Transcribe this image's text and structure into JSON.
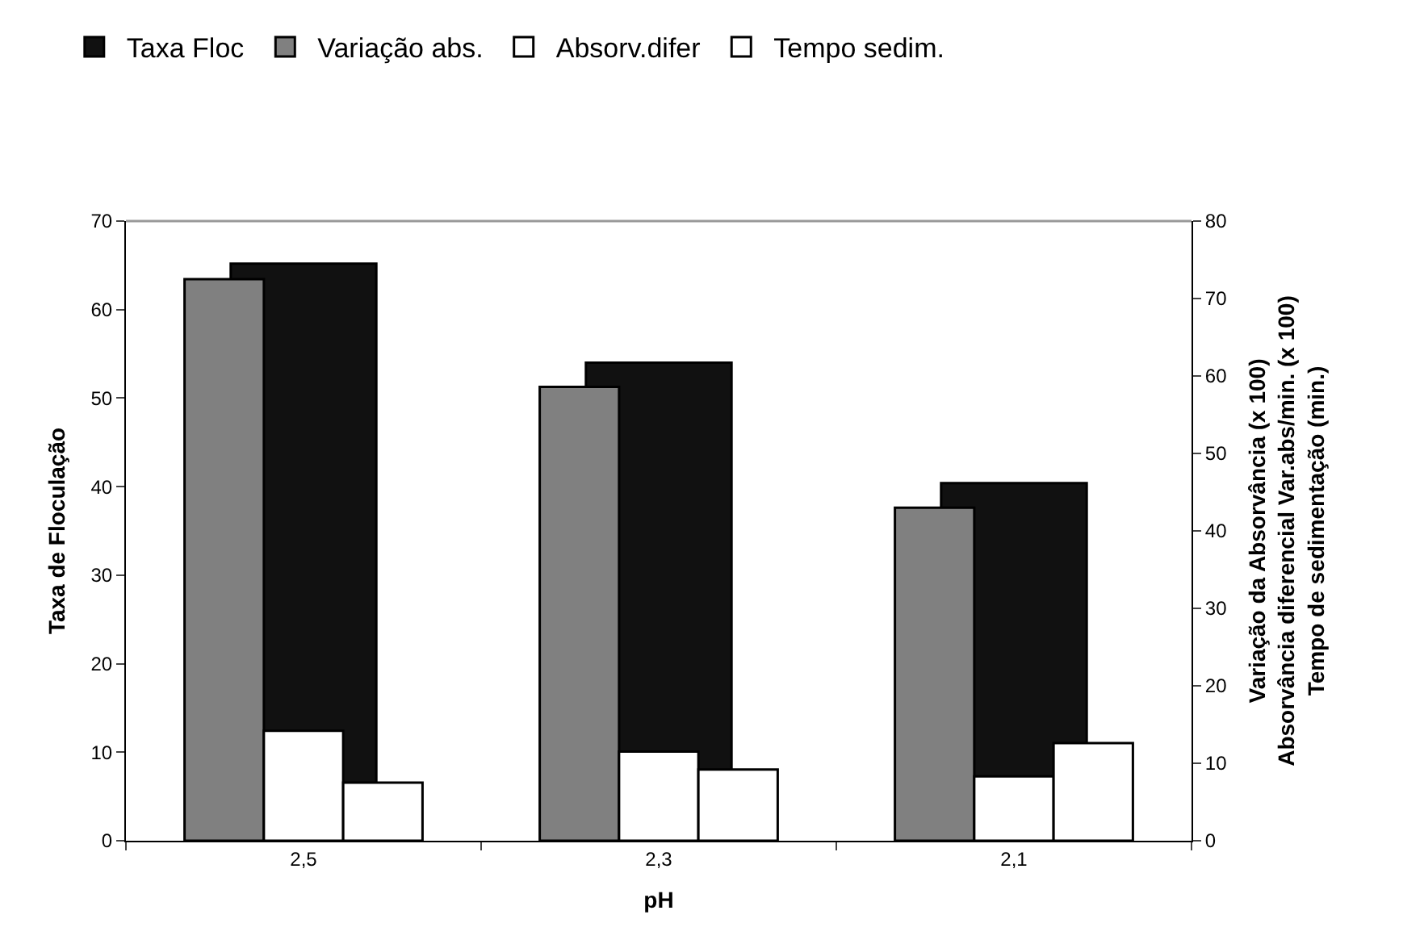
{
  "chart_data": {
    "type": "bar",
    "categories": [
      "2,5",
      "2,3",
      "2,1"
    ],
    "xlabel": "pH",
    "ylabel": "Taxa de Floculação",
    "y2label": "Variação da Absorvância (x 100)\nAbsorvância diferencial Var.abs/min. (x 100)\nTempo de sedimentação (min.)",
    "ylim": [
      0,
      70
    ],
    "yticks": [
      0,
      10,
      20,
      30,
      40,
      50,
      60,
      70
    ],
    "y2lim": [
      0,
      80
    ],
    "y2ticks": [
      0,
      10,
      20,
      30,
      40,
      50,
      60,
      70,
      80
    ],
    "grid": false,
    "legend": "top",
    "series": [
      {
        "name": "Taxa Floc",
        "color": "#111111",
        "values": [
          65.2,
          54.0,
          40.4
        ]
      },
      {
        "name": "Variação abs.",
        "color": "#808080",
        "axis": "y2",
        "values": [
          72.5,
          58.6,
          43.0
        ]
      },
      {
        "name": "Absorv.difer",
        "color": "#ffffff",
        "axis": "y2",
        "values": [
          14.2,
          11.5,
          8.3
        ]
      },
      {
        "name": "Tempo sedim.",
        "color": "#ffffff",
        "axis": "y2",
        "values": [
          7.5,
          9.2,
          12.6
        ]
      }
    ]
  }
}
